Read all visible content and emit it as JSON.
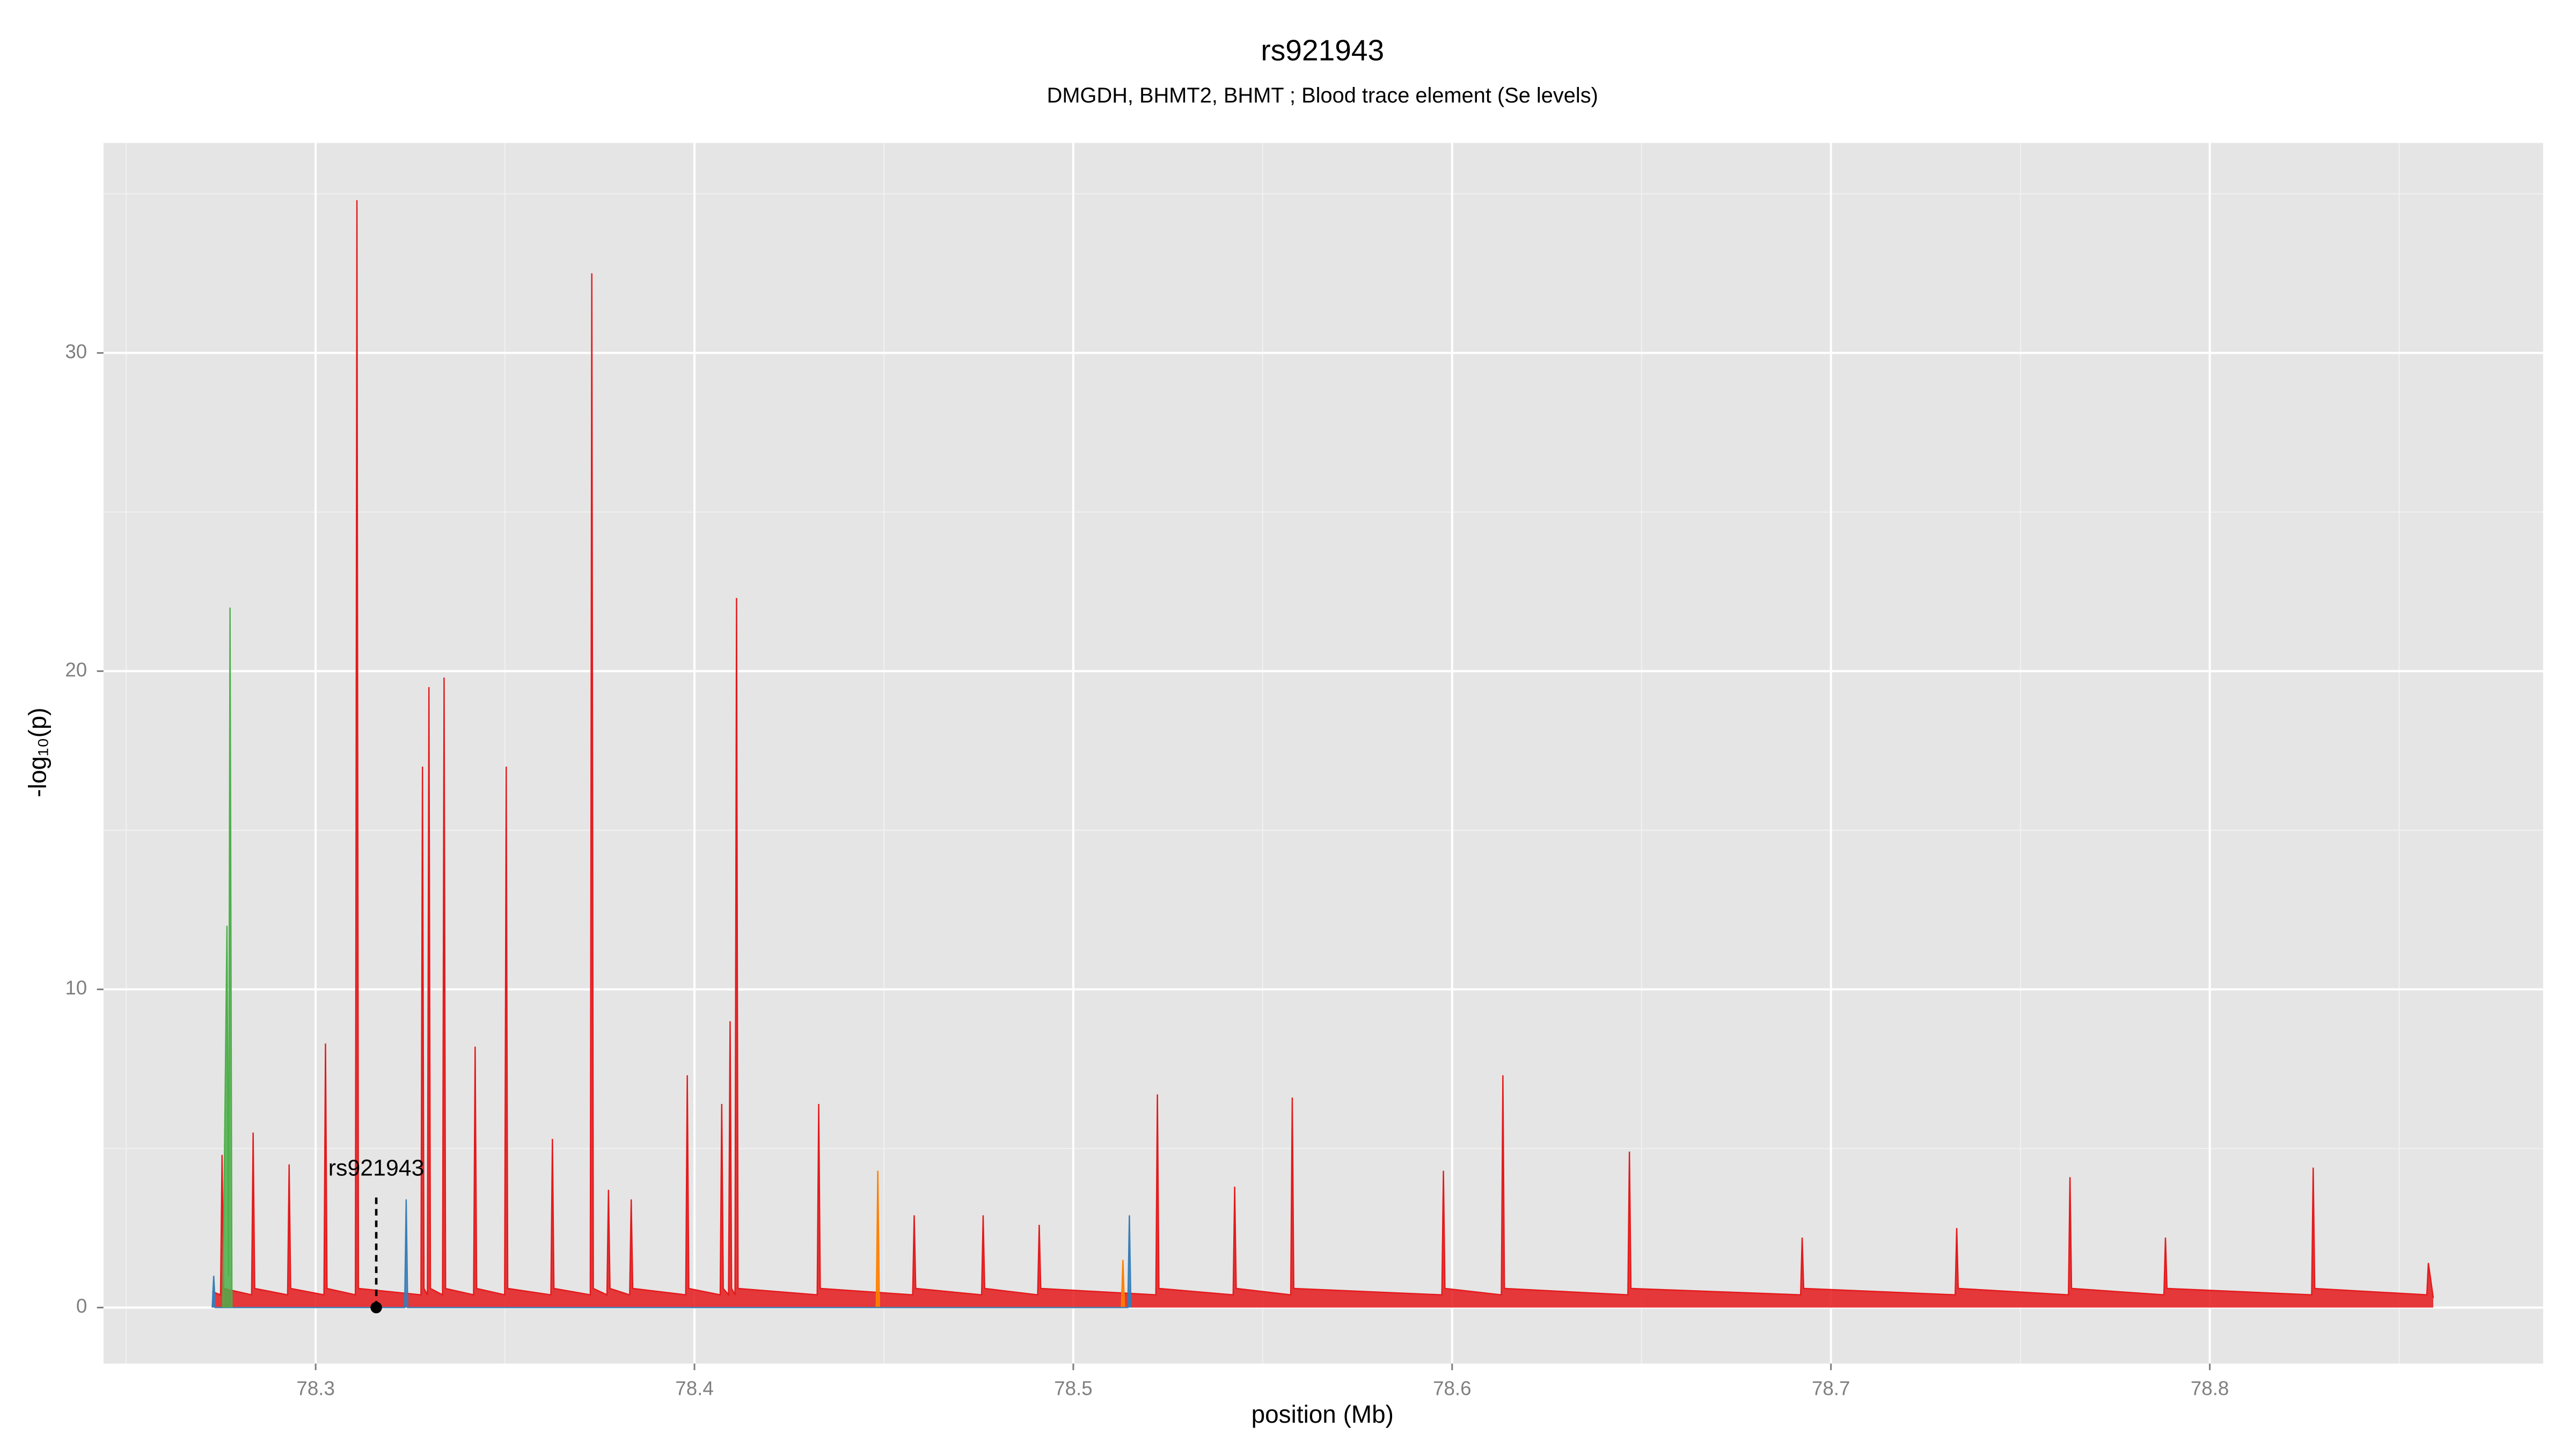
{
  "chart_data": {
    "type": "area",
    "title": "rs921943",
    "subtitle": "DMGDH, BHMT2, BHMT ; Blood trace element (Se levels)",
    "x_label": "position (Mb)",
    "y_label": "-log₁₀(p)",
    "xlim": [
      78.244,
      78.888
    ],
    "ylim": [
      -1.76,
      36.6
    ],
    "xticks": [
      78.3,
      78.4,
      78.5,
      78.6,
      78.7,
      78.8
    ],
    "yticks": [
      0,
      10,
      20,
      30
    ],
    "xminor_ticks": [
      78.25,
      78.35,
      78.45,
      78.55,
      78.65,
      78.75,
      78.85
    ],
    "yminor_ticks": [
      5,
      15,
      25,
      35
    ],
    "grid": true,
    "series": [
      {
        "color": "#e41a1c",
        "x": [
          78.2727,
          78.2749,
          78.2753,
          78.2757,
          78.2831,
          78.2835,
          78.2839,
          78.2926,
          78.293,
          78.2934,
          78.3022,
          78.3026,
          78.303,
          78.3105,
          78.3109,
          78.3113,
          78.3278,
          78.3282,
          78.3286,
          78.3295,
          78.3299,
          78.3303,
          78.3335,
          78.3339,
          78.3343,
          78.3417,
          78.3421,
          78.3425,
          78.3499,
          78.3503,
          78.3507,
          78.3621,
          78.3625,
          78.3629,
          78.3725,
          78.3729,
          78.3733,
          78.3769,
          78.3773,
          78.3777,
          78.3829,
          78.3833,
          78.3837,
          78.3977,
          78.3981,
          78.3985,
          78.4068,
          78.4072,
          78.4076,
          78.409,
          78.4094,
          78.4098,
          78.4107,
          78.4111,
          78.4115,
          78.4324,
          78.4328,
          78.4332,
          78.4576,
          78.458,
          78.4584,
          78.4758,
          78.4762,
          78.4766,
          78.4906,
          78.491,
          78.4914,
          78.5218,
          78.5222,
          78.5226,
          78.5422,
          78.5426,
          78.543,
          78.5574,
          78.5578,
          78.5582,
          78.5973,
          78.5977,
          78.5981,
          78.613,
          78.6134,
          78.6138,
          78.6464,
          78.6468,
          78.6472,
          78.692,
          78.6924,
          78.6928,
          78.7328,
          78.7332,
          78.7336,
          78.7627,
          78.7631,
          78.7635,
          78.7879,
          78.7883,
          78.7887,
          78.8269,
          78.8273,
          78.8277,
          78.8573,
          78.8577,
          78.859
        ],
        "values": [
          0.5,
          0.4,
          4.8,
          0.6,
          0.4,
          5.5,
          0.6,
          0.4,
          4.5,
          0.6,
          0.4,
          8.3,
          0.6,
          0.4,
          34.8,
          0.6,
          0.4,
          17,
          0.6,
          0.4,
          19.5,
          0.6,
          0.4,
          19.8,
          0.6,
          0.4,
          8.2,
          0.6,
          0.4,
          17,
          0.6,
          0.4,
          5.3,
          0.6,
          0.4,
          32.5,
          0.6,
          0.4,
          3.7,
          0.6,
          0.4,
          3.4,
          0.6,
          0.4,
          7.3,
          0.6,
          0.4,
          6.4,
          0.6,
          0.4,
          9,
          0.6,
          0.4,
          22.3,
          0.6,
          0.4,
          6.4,
          0.6,
          0.4,
          2.9,
          0.6,
          0.4,
          2.9,
          0.6,
          0.4,
          2.6,
          0.6,
          0.4,
          6.7,
          0.6,
          0.4,
          3.8,
          0.6,
          0.4,
          6.6,
          0.6,
          0.4,
          4.3,
          0.6,
          0.4,
          7.3,
          0.6,
          0.4,
          4.9,
          0.6,
          0.4,
          2.2,
          0.6,
          0.4,
          2.5,
          0.6,
          0.4,
          4.1,
          0.6,
          0.4,
          2.2,
          0.6,
          0.4,
          4.4,
          0.6,
          0.4,
          1.4,
          0.3
        ]
      },
      {
        "color": "#ff7f00",
        "x": [
          78.448,
          78.4484,
          78.4488,
          78.5127,
          78.5131,
          78.5135
        ],
        "values": [
          0,
          4.3,
          0,
          0,
          1.5,
          0
        ]
      },
      {
        "color": "#377eb8",
        "x": [
          78.2727,
          78.2731,
          78.2735,
          78.3235,
          78.3239,
          78.3243,
          78.5144,
          78.5148,
          78.5152
        ],
        "values": [
          0,
          1,
          0,
          0,
          3.4,
          0,
          0,
          2.9,
          0
        ]
      },
      {
        "color": "#4daf4a",
        "x": [
          78.2755,
          78.2766,
          78.277,
          78.2774,
          78.2779
        ],
        "values": [
          0,
          12,
          1,
          22,
          0
        ]
      }
    ],
    "annotation": {
      "text": "rs921943",
      "x": 78.316,
      "y": 0
    }
  }
}
